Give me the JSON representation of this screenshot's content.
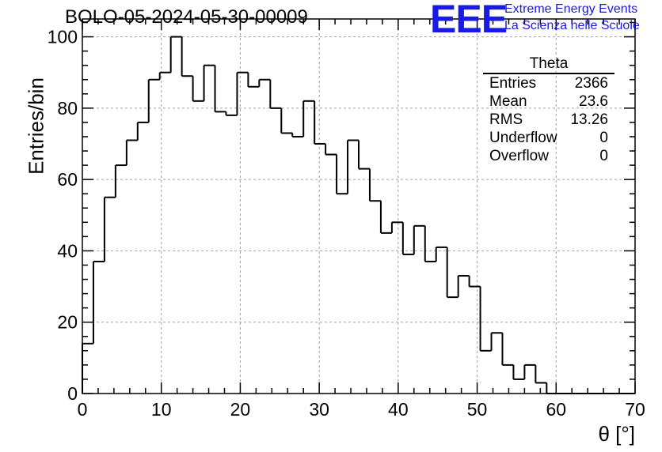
{
  "header": {
    "title": "BOLO-05-2024-05-30-00009",
    "logo_text": "EEE",
    "logo_line1": "Extreme Energy Events",
    "logo_line2": "La Scienza nelle Scuole",
    "logo_color": "#1a1ae6"
  },
  "stats_box": {
    "title": "Theta",
    "rows": [
      {
        "label": "Entries",
        "value": "2366"
      },
      {
        "label": "Mean",
        "value": "23.6"
      },
      {
        "label": "RMS",
        "value": "13.26"
      },
      {
        "label": "Underflow",
        "value": "0"
      },
      {
        "label": "Overflow",
        "value": "0"
      }
    ]
  },
  "chart_data": {
    "type": "bar",
    "style": "step-histogram",
    "title": "BOLO-05-2024-05-30-00009",
    "xlabel": "θ [°]",
    "ylabel": "Entries/bin",
    "xlim": [
      0,
      70
    ],
    "ylim": [
      0,
      105
    ],
    "bin_width": 1.4,
    "x_ticks": [
      "0",
      "10",
      "20",
      "30",
      "40",
      "50",
      "60",
      "70"
    ],
    "y_ticks": [
      "0",
      "20",
      "40",
      "60",
      "80",
      "100"
    ],
    "grid": true,
    "values": [
      14,
      37,
      55,
      64,
      71,
      76,
      88,
      90,
      100,
      89,
      82,
      92,
      79,
      78,
      90,
      86,
      88,
      80,
      73,
      72,
      82,
      70,
      67,
      56,
      71,
      63,
      54,
      45,
      48,
      39,
      47,
      37,
      41,
      27,
      33,
      30,
      12,
      17,
      8,
      4,
      8,
      3,
      0,
      0,
      0,
      0,
      0,
      0,
      0,
      0
    ],
    "line_color": "#000000"
  }
}
